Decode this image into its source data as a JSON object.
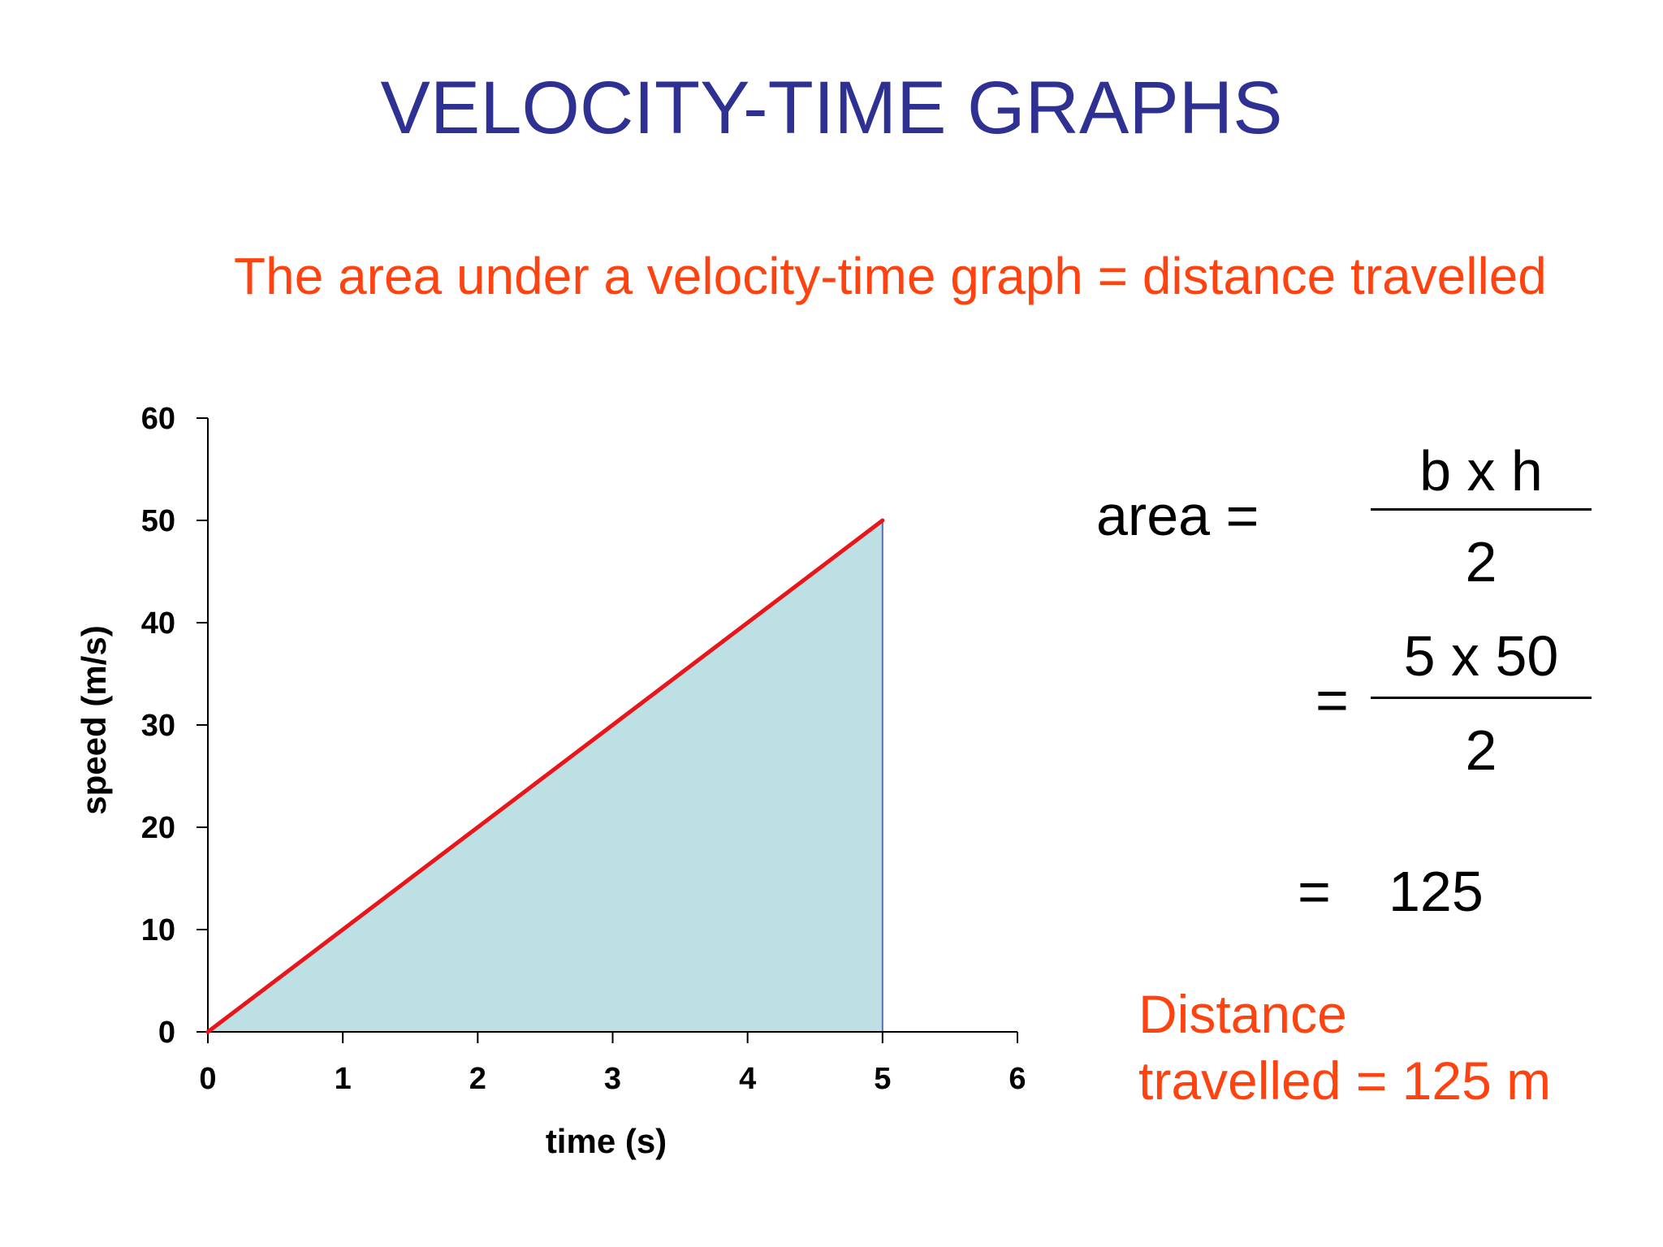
{
  "title": "VELOCITY-TIME GRAPHS",
  "subtitle": "The area under a velocity-time graph = distance travelled",
  "chart_data": {
    "type": "area",
    "x": [
      0,
      5
    ],
    "y": [
      0,
      50
    ],
    "xlabel": "time (s)",
    "ylabel": "speed (m/s)",
    "xlim": [
      0,
      6
    ],
    "ylim": [
      0,
      60
    ],
    "xticks": [
      "0",
      "1",
      "2",
      "3",
      "4",
      "5",
      "6"
    ],
    "yticks": [
      "0",
      "10",
      "20",
      "30",
      "40",
      "50",
      "60"
    ],
    "grid": false,
    "colors": {
      "line": "#e8161b",
      "fill": "#bce0e3",
      "edge": "#5b6fb5"
    }
  },
  "equation": {
    "area_label": "area =",
    "formula_numerator": "b x h",
    "formula_denominator": "2",
    "equals_1": "=",
    "values_numerator": "5 x 50",
    "values_denominator": "2",
    "equals_2": "=",
    "result": "125"
  },
  "conclusion": {
    "line1": "Distance",
    "line2": "travelled = 125 m"
  }
}
